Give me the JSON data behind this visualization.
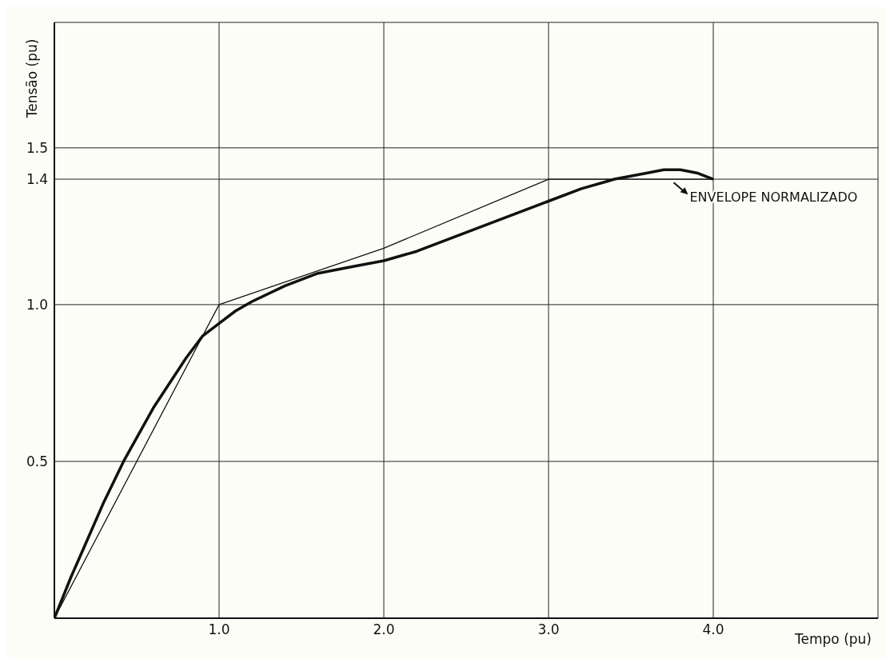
{
  "chart_data": {
    "type": "line",
    "xlabel": "Tempo (pu)",
    "ylabel": "Tensão (pu)",
    "xlim": [
      0,
      5.0
    ],
    "ylim": [
      0,
      1.9
    ],
    "xticks": [
      {
        "value": 1,
        "label": "1.0"
      },
      {
        "value": 2,
        "label": "2.0"
      },
      {
        "value": 3,
        "label": "3.0"
      },
      {
        "value": 4,
        "label": "4.0"
      }
    ],
    "yticks": [
      0.5,
      {
        "value": 1,
        "label": "1.0"
      },
      1.4,
      1.5
    ],
    "grid": true,
    "series": [
      {
        "color": "#111111",
        "x": [
          0,
          0.1,
          0.2,
          0.3,
          0.42,
          0.6,
          0.8,
          0.9,
          1.0,
          1.1,
          1.2,
          1.4,
          1.6,
          1.8,
          2.0,
          2.2,
          2.5,
          2.8,
          3.0,
          3.2,
          3.4,
          3.6,
          3.7,
          3.8,
          3.9,
          4.0
        ],
        "values": [
          0,
          0.13,
          0.25,
          0.37,
          0.5,
          0.67,
          0.83,
          0.9,
          0.94,
          0.98,
          1.01,
          1.06,
          1.1,
          1.12,
          1.14,
          1.17,
          1.23,
          1.29,
          1.33,
          1.37,
          1.4,
          1.42,
          1.43,
          1.43,
          1.42,
          1.4
        ]
      },
      {
        "color": "#111111",
        "x": [
          0,
          1,
          2,
          3,
          4
        ],
        "values": [
          0,
          1,
          1.18,
          1.4,
          1.4
        ]
      }
    ],
    "annotations": [
      {
        "text": "ENVELOPE NORMALIZADO",
        "x": 3.75,
        "y": 1.42
      }
    ]
  }
}
